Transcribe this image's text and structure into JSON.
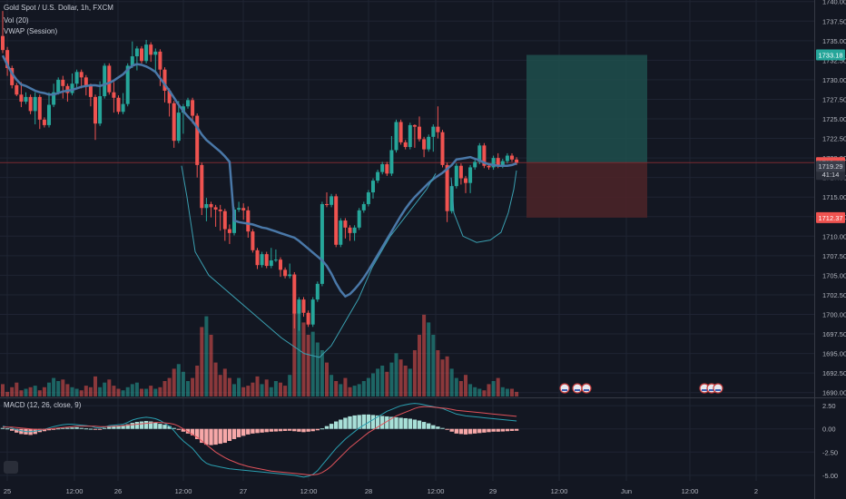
{
  "legend": {
    "symbol": "Gold Spot / U.S. Dollar, 1h, FXCM",
    "vol": "Vol (20)",
    "vwap": "VWAP (Session)",
    "macd": "MACD (12, 26, close, 9)"
  },
  "colors": {
    "bg": "#131722",
    "grid": "#1f2433",
    "up": "#26a69a",
    "down": "#ef5350",
    "vwap": "#4a78a8",
    "bb": "#3a9fb0",
    "macd_line": "#2a9fb0",
    "signal_line": "#e0525a",
    "hist_up": "#a8e0d8",
    "hist_down": "#f7a8a8",
    "target": "#1e4f4c",
    "stop": "#4a2428",
    "price_line": "#7a2a30"
  },
  "price_badges": {
    "target": "1733.18",
    "current": "1719.41",
    "countdown": "41:14",
    "entry": "1719.29",
    "stop": "1712.37"
  },
  "chart_data": [
    {
      "type": "candlestick",
      "title": "Gold Spot / U.S. Dollar, 1h, FXCM",
      "ylim": [
        1689.5,
        1740.2
      ],
      "yticks": [
        "1740.00",
        "1737.50",
        "1735.00",
        "1732.50",
        "1730.00",
        "1727.50",
        "1725.00",
        "1722.50",
        "1720.00",
        "1717.50",
        "1715.00",
        "1712.50",
        "1710.00",
        "1707.50",
        "1705.00",
        "1702.50",
        "1700.00",
        "1697.50",
        "1695.00",
        "1692.50",
        "1690.00"
      ],
      "xticks": [
        "25",
        "12:00",
        "26",
        "12:00",
        "27",
        "12:00",
        "28",
        "12:00",
        "29",
        "12:00",
        "Jun",
        "12:00",
        "2"
      ],
      "candles": [
        [
          1735.6,
          1733.8,
          1738.8,
          1733.4
        ],
        [
          1733.8,
          1731.5,
          1734.2,
          1730.5
        ],
        [
          1731.5,
          1729.3,
          1731.8,
          1728.9
        ],
        [
          1729.3,
          1728.1,
          1729.6,
          1727.9
        ],
        [
          1728.1,
          1727.2,
          1729.7,
          1726.5
        ],
        [
          1727.2,
          1727.8,
          1728.4,
          1726.9
        ],
        [
          1727.8,
          1726.0,
          1728.1,
          1725.6
        ],
        [
          1726.0,
          1727.8,
          1728.4,
          1724.3
        ],
        [
          1727.8,
          1724.9,
          1728.1,
          1723.7
        ],
        [
          1724.9,
          1724.2,
          1725.2,
          1723.9
        ],
        [
          1724.2,
          1726.8,
          1728.4,
          1723.9
        ],
        [
          1726.8,
          1728.4,
          1729.5,
          1726.5
        ],
        [
          1728.4,
          1730.0,
          1730.3,
          1728.1
        ],
        [
          1730.0,
          1729.2,
          1730.5,
          1727.6
        ],
        [
          1729.2,
          1728.3,
          1729.5,
          1727.2
        ],
        [
          1728.3,
          1729.5,
          1730.8,
          1728.0
        ],
        [
          1729.5,
          1731.0,
          1731.3,
          1728.8
        ],
        [
          1731.0,
          1730.3,
          1731.3,
          1728.9
        ],
        [
          1730.3,
          1729.2,
          1730.6,
          1728.0
        ],
        [
          1729.2,
          1727.8,
          1729.5,
          1726.6
        ],
        [
          1727.8,
          1724.4,
          1728.1,
          1722.3
        ],
        [
          1724.4,
          1727.9,
          1729.8,
          1724.1
        ],
        [
          1727.9,
          1731.8,
          1732.1,
          1727.6
        ],
        [
          1731.8,
          1728.4,
          1732.1,
          1728.1
        ],
        [
          1728.4,
          1727.7,
          1729.7,
          1725.8
        ],
        [
          1727.7,
          1725.9,
          1728.0,
          1725.6
        ],
        [
          1725.9,
          1726.9,
          1728.3,
          1725.6
        ],
        [
          1726.9,
          1731.8,
          1732.1,
          1726.6
        ],
        [
          1731.8,
          1733.0,
          1734.9,
          1731.5
        ],
        [
          1733.0,
          1734.0,
          1734.3,
          1731.2
        ],
        [
          1734.0,
          1732.4,
          1734.3,
          1732.1
        ],
        [
          1732.4,
          1734.5,
          1735.1,
          1732.1
        ],
        [
          1734.5,
          1733.2,
          1734.8,
          1732.3
        ],
        [
          1733.2,
          1733.6,
          1734.0,
          1731.1
        ],
        [
          1733.6,
          1731.3,
          1733.9,
          1729.2
        ],
        [
          1731.3,
          1728.6,
          1731.6,
          1727.1
        ],
        [
          1728.6,
          1727.0,
          1728.9,
          1725.3
        ],
        [
          1727.0,
          1722.2,
          1727.3,
          1721.3
        ],
        [
          1722.2,
          1725.8,
          1727.3,
          1721.9
        ],
        [
          1725.8,
          1726.6,
          1726.9,
          1723.1
        ],
        [
          1726.6,
          1727.4,
          1727.7,
          1726.3
        ],
        [
          1727.4,
          1725.4,
          1727.7,
          1724.4
        ],
        [
          1725.4,
          1719.1,
          1725.7,
          1717.5
        ],
        [
          1719.1,
          1713.6,
          1719.4,
          1712.7
        ],
        [
          1713.6,
          1714.1,
          1714.9,
          1711.9
        ],
        [
          1714.1,
          1713.7,
          1714.4,
          1712.4
        ],
        [
          1713.7,
          1713.4,
          1714.0,
          1711.2
        ],
        [
          1713.4,
          1713.2,
          1714.0,
          1710.7
        ],
        [
          1713.2,
          1710.9,
          1713.5,
          1709.4
        ],
        [
          1710.9,
          1710.4,
          1711.5,
          1709.0
        ],
        [
          1710.4,
          1713.4,
          1713.7,
          1710.1
        ],
        [
          1713.4,
          1713.6,
          1714.4,
          1713.1
        ],
        [
          1713.6,
          1713.3,
          1714.2,
          1712.1
        ],
        [
          1713.3,
          1710.6,
          1713.8,
          1709.8
        ],
        [
          1710.6,
          1708.2,
          1710.9,
          1707.9
        ],
        [
          1708.2,
          1706.3,
          1708.5,
          1705.8
        ],
        [
          1706.3,
          1707.7,
          1708.0,
          1706.0
        ],
        [
          1707.7,
          1706.2,
          1708.0,
          1705.9
        ],
        [
          1706.2,
          1706.9,
          1708.5,
          1705.9
        ],
        [
          1706.9,
          1707.0,
          1708.3,
          1706.7
        ],
        [
          1707.0,
          1705.7,
          1707.3,
          1704.8
        ],
        [
          1705.7,
          1704.9,
          1706.0,
          1704.6
        ],
        [
          1704.9,
          1705.1,
          1706.5,
          1704.6
        ],
        [
          1705.1,
          1700.1,
          1705.4,
          1698.2
        ],
        [
          1700.1,
          1701.9,
          1702.2,
          1697.9
        ],
        [
          1701.9,
          1700.2,
          1702.2,
          1699.7
        ],
        [
          1700.2,
          1698.7,
          1700.5,
          1698.4
        ],
        [
          1698.7,
          1701.9,
          1702.2,
          1698.4
        ],
        [
          1701.9,
          1703.9,
          1704.2,
          1701.6
        ],
        [
          1703.9,
          1714.1,
          1714.4,
          1703.6
        ],
        [
          1714.1,
          1714.0,
          1715.6,
          1713.7
        ],
        [
          1714.0,
          1715.1,
          1715.4,
          1713.7
        ],
        [
          1715.1,
          1708.9,
          1715.4,
          1708.6
        ],
        [
          1708.9,
          1712.0,
          1712.3,
          1708.6
        ],
        [
          1712.0,
          1711.1,
          1712.3,
          1709.7
        ],
        [
          1711.1,
          1710.4,
          1711.4,
          1709.4
        ],
        [
          1710.4,
          1711.1,
          1711.4,
          1709.4
        ],
        [
          1711.1,
          1713.3,
          1713.6,
          1710.8
        ],
        [
          1713.3,
          1714.1,
          1714.4,
          1713.0
        ],
        [
          1714.1,
          1715.6,
          1715.9,
          1713.8
        ],
        [
          1715.6,
          1717.1,
          1717.4,
          1714.8
        ],
        [
          1717.1,
          1718.2,
          1718.5,
          1716.8
        ],
        [
          1718.2,
          1719.2,
          1719.5,
          1717.9
        ],
        [
          1719.2,
          1718.0,
          1719.5,
          1717.7
        ],
        [
          1718.0,
          1721.0,
          1722.8,
          1717.7
        ],
        [
          1721.0,
          1724.6,
          1724.9,
          1720.7
        ],
        [
          1724.6,
          1722.0,
          1724.9,
          1721.7
        ],
        [
          1722.0,
          1721.4,
          1722.3,
          1721.1
        ],
        [
          1721.4,
          1724.2,
          1724.5,
          1721.1
        ],
        [
          1724.2,
          1724.0,
          1724.3,
          1721.3
        ],
        [
          1724.0,
          1722.4,
          1725.3,
          1722.1
        ],
        [
          1722.4,
          1721.1,
          1722.7,
          1720.1
        ],
        [
          1721.1,
          1722.7,
          1723.0,
          1720.8
        ],
        [
          1722.7,
          1724.0,
          1724.3,
          1720.8
        ],
        [
          1724.0,
          1723.3,
          1726.6,
          1722.5
        ],
        [
          1723.3,
          1719.1,
          1723.6,
          1718.8
        ],
        [
          1719.1,
          1713.2,
          1719.4,
          1711.8
        ],
        [
          1713.2,
          1716.4,
          1716.7,
          1712.9
        ],
        [
          1716.4,
          1719.0,
          1719.3,
          1716.1
        ],
        [
          1719.0,
          1717.4,
          1719.3,
          1716.6
        ],
        [
          1717.4,
          1716.8,
          1717.7,
          1715.5
        ],
        [
          1716.8,
          1718.8,
          1719.1,
          1715.5
        ],
        [
          1718.8,
          1719.5,
          1719.8,
          1718.5
        ],
        [
          1719.5,
          1721.6,
          1721.9,
          1719.2
        ],
        [
          1721.6,
          1719.0,
          1721.9,
          1718.7
        ],
        [
          1719.0,
          1718.8,
          1719.3,
          1718.5
        ],
        [
          1718.8,
          1720.0,
          1720.3,
          1718.5
        ],
        [
          1720.0,
          1719.0,
          1720.6,
          1718.7
        ],
        [
          1719.0,
          1719.6,
          1719.9,
          1718.7
        ],
        [
          1719.6,
          1720.3,
          1720.6,
          1719.3
        ],
        [
          1720.3,
          1719.8,
          1720.6,
          1719.5
        ],
        [
          1719.8,
          1719.4,
          1720.1,
          1719.1
        ]
      ],
      "volume": [
        8,
        3,
        6,
        9,
        4,
        5,
        6,
        7,
        4,
        6,
        9,
        12,
        10,
        11,
        8,
        6,
        5,
        4,
        7,
        6,
        13,
        6,
        9,
        11,
        7,
        5,
        4,
        6,
        8,
        9,
        5,
        5,
        7,
        5,
        6,
        10,
        12,
        18,
        21,
        16,
        10,
        12,
        20,
        45,
        52,
        40,
        22,
        14,
        18,
        12,
        8,
        12,
        6,
        7,
        9,
        13,
        8,
        11,
        6,
        10,
        9,
        7,
        14,
        55,
        60,
        48,
        40,
        42,
        35,
        30,
        22,
        14,
        10,
        8,
        12,
        6,
        7,
        8,
        10,
        12,
        15,
        18,
        20,
        16,
        22,
        28,
        24,
        20,
        18,
        30,
        40,
        53,
        48,
        40,
        30,
        24,
        26,
        18,
        12,
        10,
        14,
        8,
        6,
        5,
        4,
        8,
        10,
        12,
        6,
        5,
        5,
        3
      ],
      "vwap": [
        1733.1,
        1731.9,
        1730.8,
        1730.0,
        1729.4,
        1729.2,
        1728.9,
        1728.6,
        1728.4,
        1728.3,
        1728.1,
        1728.1,
        1728.3,
        1728.5,
        1728.6,
        1728.7,
        1728.9,
        1729.1,
        1729.2,
        1729.3,
        1729.3,
        1729.2,
        1729.4,
        1729.6,
        1729.9,
        1730.3,
        1730.7,
        1731.3,
        1731.8,
        1732.0,
        1731.9,
        1731.7,
        1731.4,
        1731.0,
        1730.2,
        1729.4,
        1728.6,
        1727.7,
        1726.8,
        1726.0,
        1725.3,
        1724.7,
        1723.9,
        1723.0,
        1722.3,
        1721.8,
        1721.3,
        1720.8,
        1720.2,
        1719.5,
        1712.0,
        1711.8,
        1711.7,
        1711.6,
        1711.5,
        1711.3,
        1711.1,
        1711.0,
        1710.8,
        1710.6,
        1710.4,
        1710.2,
        1710.0,
        1709.8,
        1709.4,
        1708.9,
        1708.4,
        1707.9,
        1707.4,
        1706.9,
        1706.2,
        1705.2,
        1704.0,
        1703.0,
        1702.3,
        1702.6,
        1703.2,
        1703.9,
        1704.7,
        1705.6,
        1706.6,
        1707.6,
        1708.6,
        1709.6,
        1710.6,
        1711.6,
        1712.6,
        1713.5,
        1714.3,
        1715.0,
        1715.6,
        1716.2,
        1716.8,
        1717.3,
        1717.7,
        1718.1,
        1718.6,
        1719.1,
        1719.8,
        1719.9,
        1720.0,
        1720.1,
        1719.9,
        1719.7,
        1719.4,
        1719.2,
        1719.1,
        1719.0,
        1719.0,
        1719.0,
        1719.1,
        1719.3
      ]
    },
    {
      "type": "line",
      "title": "MACD (12, 26, close, 9)",
      "ylim": [
        -5.6,
        3.2
      ],
      "yticks": [
        "2.50",
        "0.00",
        "-2.50",
        "-5.00"
      ],
      "histogram": [
        0.1,
        0.05,
        -0.2,
        -0.4,
        -0.55,
        -0.6,
        -0.65,
        -0.55,
        -0.35,
        -0.25,
        -0.15,
        -0.05,
        0.05,
        0.1,
        0.12,
        0.15,
        0.18,
        0.1,
        0.05,
        0.02,
        -0.05,
        -0.03,
        0.1,
        0.25,
        0.3,
        0.35,
        0.38,
        0.5,
        0.65,
        0.75,
        0.8,
        0.85,
        0.8,
        0.7,
        0.55,
        0.45,
        0.3,
        0.1,
        -0.1,
        -0.3,
        -0.5,
        -0.7,
        -1.1,
        -1.5,
        -1.7,
        -1.75,
        -1.7,
        -1.6,
        -1.5,
        -1.3,
        -1.1,
        -0.9,
        -0.75,
        -0.6,
        -0.5,
        -0.45,
        -0.4,
        -0.35,
        -0.3,
        -0.28,
        -0.25,
        -0.22,
        -0.2,
        -0.25,
        -0.3,
        -0.35,
        -0.3,
        -0.25,
        -0.15,
        0.05,
        0.3,
        0.55,
        0.8,
        1.0,
        1.2,
        1.35,
        1.45,
        1.5,
        1.55,
        1.55,
        1.5,
        1.45,
        1.4,
        1.35,
        1.3,
        1.25,
        1.2,
        1.15,
        1.1,
        1.0,
        0.9,
        0.75,
        0.6,
        0.4,
        0.25,
        0.1,
        -0.1,
        -0.3,
        -0.5,
        -0.55,
        -0.6,
        -0.55,
        -0.5,
        -0.45,
        -0.4,
        -0.35,
        -0.3,
        -0.3,
        -0.28,
        -0.25,
        -0.22,
        -0.2
      ],
      "macd_line": [
        0.3,
        0.2,
        0.1,
        -0.1,
        -0.2,
        -0.3,
        -0.3,
        -0.25,
        -0.15,
        -0.05,
        0.1,
        0.25,
        0.35,
        0.45,
        0.5,
        0.5,
        0.45,
        0.4,
        0.35,
        0.3,
        0.15,
        0.1,
        0.2,
        0.35,
        0.4,
        0.45,
        0.5,
        0.7,
        0.95,
        1.1,
        1.2,
        1.25,
        1.2,
        1.1,
        0.9,
        0.6,
        0.3,
        -0.2,
        -0.8,
        -1.3,
        -1.7,
        -2.1,
        -2.7,
        -3.3,
        -3.7,
        -3.9,
        -4.0,
        -4.1,
        -4.2,
        -4.3,
        -4.35,
        -4.4,
        -4.45,
        -4.5,
        -4.55,
        -4.6,
        -4.65,
        -4.7,
        -4.75,
        -4.8,
        -4.85,
        -4.9,
        -4.95,
        -5.0,
        -5.1,
        -5.2,
        -5.1,
        -4.9,
        -4.5,
        -3.9,
        -3.3,
        -2.7,
        -2.1,
        -1.6,
        -1.1,
        -0.7,
        -0.3,
        0.1,
        0.4,
        0.7,
        1.0,
        1.3,
        1.6,
        1.9,
        2.1,
        2.3,
        2.5,
        2.6,
        2.7,
        2.75,
        2.7,
        2.6,
        2.5,
        2.4,
        2.3,
        2.2,
        2.0,
        1.8,
        1.6,
        1.5,
        1.4,
        1.35,
        1.3,
        1.25,
        1.2,
        1.15,
        1.1,
        1.05,
        1.0,
        0.95,
        0.9,
        0.85
      ],
      "signal_line": [
        0.2,
        0.2,
        0.2,
        0.15,
        0.1,
        0.05,
        0.0,
        -0.05,
        -0.05,
        -0.05,
        0.0,
        0.05,
        0.1,
        0.15,
        0.2,
        0.25,
        0.3,
        0.3,
        0.3,
        0.3,
        0.3,
        0.25,
        0.25,
        0.25,
        0.3,
        0.3,
        0.35,
        0.4,
        0.45,
        0.5,
        0.55,
        0.6,
        0.65,
        0.7,
        0.7,
        0.65,
        0.6,
        0.5,
        0.3,
        0.0,
        -0.3,
        -0.6,
        -0.9,
        -1.3,
        -1.7,
        -2.1,
        -2.5,
        -2.8,
        -3.1,
        -3.35,
        -3.55,
        -3.75,
        -3.9,
        -4.05,
        -4.15,
        -4.25,
        -4.35,
        -4.45,
        -4.55,
        -4.6,
        -4.65,
        -4.7,
        -4.75,
        -4.8,
        -4.85,
        -4.9,
        -4.95,
        -4.95,
        -4.9,
        -4.7,
        -4.4,
        -4.0,
        -3.5,
        -3.0,
        -2.5,
        -2.0,
        -1.6,
        -1.2,
        -0.8,
        -0.4,
        -0.1,
        0.2,
        0.5,
        0.8,
        1.1,
        1.4,
        1.6,
        1.8,
        2.0,
        2.2,
        2.35,
        2.4,
        2.4,
        2.35,
        2.3,
        2.25,
        2.2,
        2.1,
        2.0,
        1.95,
        1.9,
        1.85,
        1.8,
        1.75,
        1.7,
        1.65,
        1.6,
        1.55,
        1.5,
        1.45,
        1.4,
        1.35
      ]
    }
  ]
}
